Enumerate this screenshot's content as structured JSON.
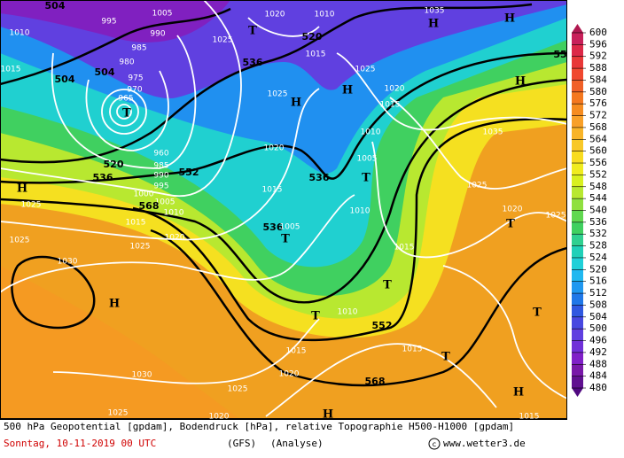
{
  "map": {
    "labels": [
      "1010",
      "504",
      "995",
      "1005",
      "990",
      "985",
      "1020",
      "1010",
      "520",
      "1035",
      "H",
      "H",
      "1025",
      "T",
      "1015",
      "536",
      "55",
      "1015",
      "504",
      "980",
      "504",
      "975",
      "970",
      "965",
      "T",
      "1025",
      "H",
      "H",
      "1020",
      "1025",
      "H",
      "1015",
      "1010",
      "1035",
      "1020",
      "520",
      "960",
      "536",
      "985",
      "990",
      "552",
      "1005",
      "536",
      "T",
      "1025",
      "H",
      "1000",
      "995",
      "1005",
      "568",
      "1010",
      "1015",
      "1010",
      "1020",
      "1025",
      "1025",
      "1015",
      "T",
      "536",
      "1005",
      "T",
      "1020",
      "1025",
      "1025",
      "1015",
      "1030",
      "T",
      "T",
      "H",
      "1010",
      "T",
      "552",
      "1015",
      "1015",
      "T",
      "1030",
      "1020",
      "568",
      "1025",
      "H",
      "1025",
      "1020",
      "H",
      "1015"
    ]
  },
  "legend": {
    "labels": [
      600,
      596,
      592,
      588,
      584,
      580,
      576,
      572,
      568,
      564,
      560,
      556,
      552,
      548,
      544,
      540,
      536,
      532,
      528,
      524,
      520,
      516,
      512,
      508,
      504,
      500,
      496,
      492,
      488,
      484,
      480
    ]
  },
  "footer": {
    "description": "500 hPa Geopotential [gpdam], Bodendruck [hPa], relative Topographie H500-H1000 [gpdam]",
    "date": "Sonntag, 10-11-2019  00 UTC",
    "model": "(GFS)",
    "run": "(Analyse)",
    "copyright": "www.wetter3.de"
  }
}
